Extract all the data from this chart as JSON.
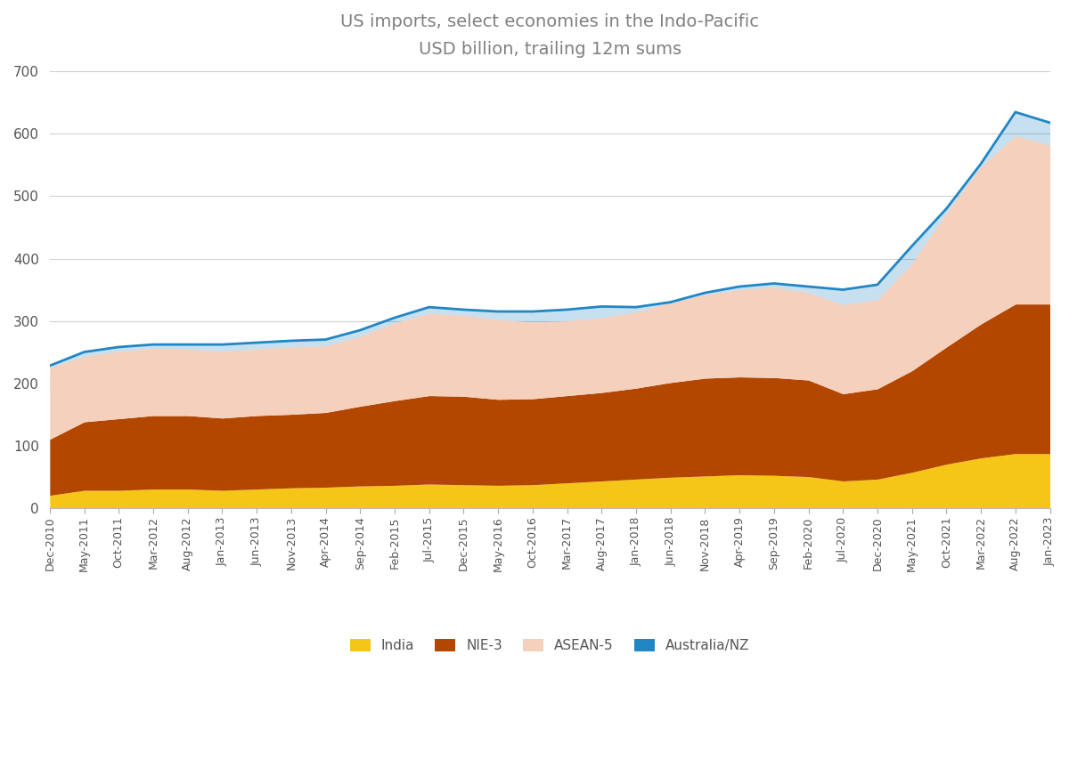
{
  "title_line1": "US imports, select economies in the Indo-Pacific",
  "title_line2": "USD billion, trailing 12m sums",
  "title_color": "#808080",
  "background_color": "#ffffff",
  "ylim": [
    0,
    700
  ],
  "yticks": [
    0,
    100,
    200,
    300,
    400,
    500,
    600,
    700
  ],
  "series_labels": [
    "India",
    "NIE-3",
    "ASEAN-5",
    "Australia/NZ"
  ],
  "series_colors": [
    "#F5C518",
    "#B34700",
    "#F5D0BC",
    "#2186C4"
  ],
  "x_labels": [
    "Dec-2010",
    "May-2011",
    "Oct-2011",
    "Mar-2012",
    "Aug-2012",
    "Jan-2013",
    "Jun-2013",
    "Nov-2013",
    "Apr-2014",
    "Sep-2014",
    "Feb-2015",
    "Jul-2015",
    "Dec-2015",
    "May-2016",
    "Oct-2016",
    "Mar-2017",
    "Aug-2017",
    "Jan-2018",
    "Jun-2018",
    "Nov-2018",
    "Apr-2019",
    "Sep-2019",
    "Feb-2020",
    "Jul-2020",
    "Dec-2020",
    "May-2021",
    "Oct-2021",
    "Mar-2022",
    "Aug-2022",
    "Jan-2023"
  ],
  "india": [
    20,
    28,
    28,
    30,
    30,
    28,
    30,
    32,
    33,
    35,
    36,
    38,
    37,
    36,
    37,
    40,
    43,
    46,
    49,
    51,
    53,
    52,
    50,
    43,
    46,
    57,
    70,
    80,
    87,
    87
  ],
  "nie3": [
    90,
    110,
    115,
    118,
    118,
    116,
    118,
    118,
    120,
    128,
    136,
    142,
    142,
    138,
    138,
    140,
    142,
    146,
    152,
    157,
    157,
    157,
    155,
    140,
    145,
    163,
    188,
    215,
    240,
    240
  ],
  "asean5": [
    115,
    105,
    108,
    108,
    107,
    107,
    107,
    108,
    107,
    112,
    125,
    132,
    130,
    128,
    123,
    120,
    120,
    122,
    128,
    134,
    140,
    145,
    140,
    143,
    143,
    172,
    215,
    252,
    270,
    255
  ],
  "australia_nz_total": [
    228,
    250,
    258,
    262,
    262,
    262,
    265,
    268,
    270,
    285,
    305,
    322,
    318,
    315,
    315,
    318,
    323,
    322,
    330,
    345,
    355,
    360,
    355,
    350,
    358,
    420,
    480,
    552,
    635,
    618
  ]
}
